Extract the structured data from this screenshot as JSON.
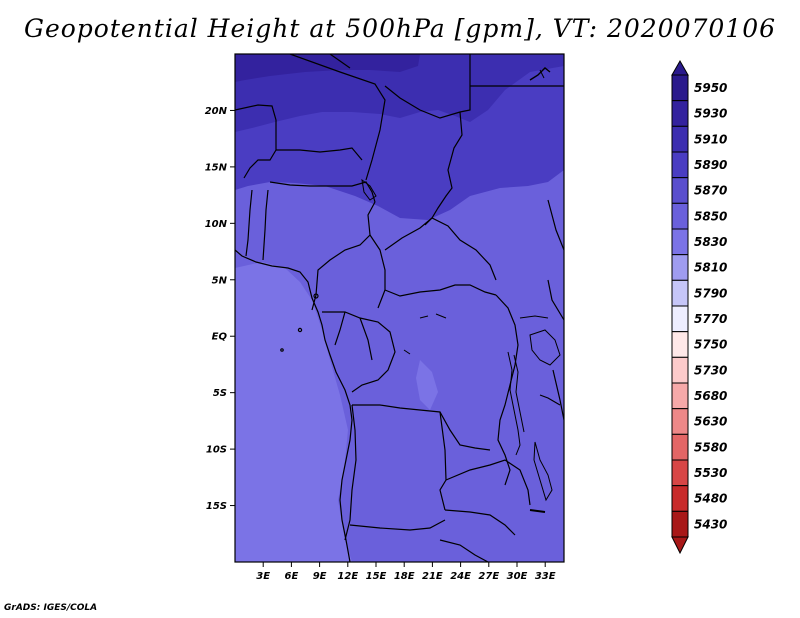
{
  "title": "Geopotential Height at 500hPa [gpm], VT: 2020070106",
  "footer": "GrADS: IGES/COLA",
  "axes": {
    "lon_labels": [
      "3E",
      "6E",
      "9E",
      "12E",
      "15E",
      "18E",
      "21E",
      "24E",
      "27E",
      "30E",
      "33E"
    ],
    "lat_labels": [
      "20N",
      "15N",
      "10N",
      "5N",
      "EQ",
      "5S",
      "10S",
      "15S"
    ]
  },
  "map_extent": {
    "lon": [
      0,
      35
    ],
    "lat": [
      -20,
      25
    ]
  },
  "colorbar": {
    "levels": [
      "5950",
      "5930",
      "5910",
      "5890",
      "5870",
      "5850",
      "5830",
      "5810",
      "5790",
      "5770",
      "5750",
      "5730",
      "5680",
      "5630",
      "5580",
      "5530",
      "5480",
      "5430"
    ],
    "colors": [
      "#2a1a8c",
      "#33229e",
      "#3c2eb0",
      "#4a3dc2",
      "#5a4fce",
      "#6a60db",
      "#7b73e6",
      "#9f9cf0",
      "#c6c6f8",
      "#eeeeff",
      "#ffe8e8",
      "#fccaca",
      "#f6a9a9",
      "#ee8888",
      "#e46666",
      "#d84646",
      "#c82a2a",
      "#a81818"
    ]
  }
}
